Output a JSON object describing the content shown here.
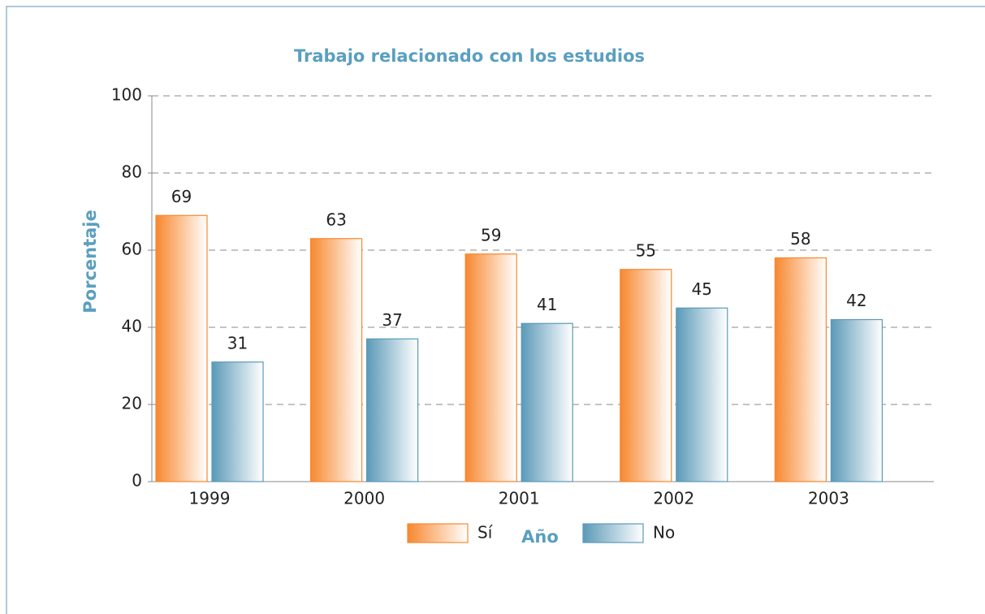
{
  "chart_data": {
    "type": "bar",
    "title": "Trabajo relacionado con los estudios",
    "x_label": "Año",
    "y_label": "Porcentaje",
    "categories": [
      "1999",
      "2000",
      "2001",
      "2002",
      "2003"
    ],
    "series": [
      {
        "name": "Sí",
        "color": "#f7882f",
        "values": [
          69,
          63,
          59,
          55,
          58
        ]
      },
      {
        "name": "No",
        "color": "#5b9ab8",
        "values": [
          31,
          37,
          41,
          45,
          42
        ]
      }
    ],
    "ylim": [
      0,
      100
    ],
    "yticks": [
      0,
      20,
      40,
      60,
      80,
      100
    ],
    "grid": true,
    "legend": "bottom"
  }
}
